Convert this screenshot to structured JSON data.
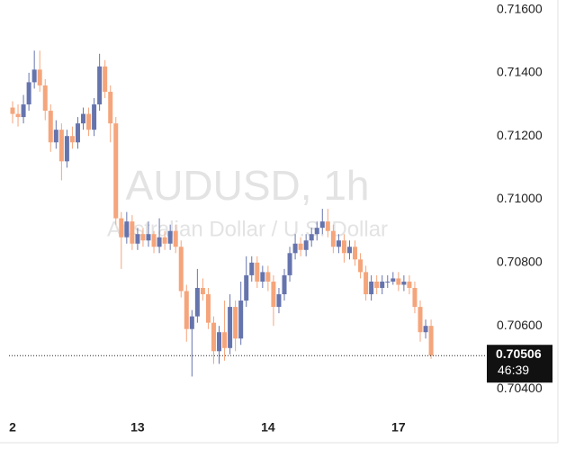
{
  "chart_data": {
    "type": "candlestick",
    "title": "AUDUSD, 1h",
    "subtitle": "Australian Dollar / U.S. Dollar",
    "categories": [
      "2",
      null,
      null,
      null,
      null,
      null,
      null,
      null,
      null,
      null,
      null,
      null,
      null,
      null,
      null,
      null,
      null,
      null,
      null,
      null,
      null,
      null,
      null,
      "13",
      null,
      null,
      null,
      null,
      null,
      null,
      null,
      null,
      null,
      null,
      null,
      null,
      null,
      null,
      null,
      null,
      null,
      null,
      null,
      null,
      null,
      null,
      null,
      "14",
      null,
      null,
      null,
      null,
      null,
      null,
      null,
      null,
      null,
      null,
      null,
      null,
      null,
      null,
      null,
      null,
      null,
      null,
      null,
      null,
      null,
      null,
      null,
      "17",
      null,
      null,
      null,
      null,
      null,
      null
    ],
    "open": [
      0.7129,
      0.7127,
      0.7126,
      0.713,
      0.7137,
      0.7141,
      0.7136,
      0.7128,
      0.7118,
      0.7122,
      0.7112,
      0.712,
      0.7118,
      0.7124,
      0.7127,
      0.7122,
      0.713,
      0.7142,
      0.7134,
      0.7124,
      0.7094,
      0.7088,
      0.7093,
      0.7086,
      0.7089,
      0.7087,
      0.7089,
      0.7085,
      0.7088,
      0.7086,
      0.709,
      0.7085,
      0.7071,
      0.7059,
      0.7063,
      0.7072,
      0.707,
      0.7061,
      0.7052,
      0.7058,
      0.7053,
      0.7066,
      0.7056,
      0.7068,
      0.7076,
      0.708,
      0.7074,
      0.7077,
      0.7074,
      0.7066,
      0.707,
      0.7076,
      0.7083,
      0.7086,
      0.7084,
      0.7087,
      0.7089,
      0.7091,
      0.7093,
      0.709,
      0.7085,
      0.7087,
      0.7083,
      0.7085,
      0.7081,
      0.7077,
      0.707,
      0.7074,
      0.7072,
      0.7074,
      0.7074,
      0.7075,
      0.7073,
      0.7074,
      0.7072,
      0.7066,
      0.7058,
      0.706
    ],
    "high": [
      0.7131,
      0.713,
      0.7133,
      0.714,
      0.7147,
      0.7147,
      0.7138,
      0.713,
      0.7125,
      0.7124,
      0.7122,
      0.7123,
      0.7126,
      0.7129,
      0.7129,
      0.7132,
      0.7146,
      0.7144,
      0.7136,
      0.7126,
      0.7096,
      0.7096,
      0.7095,
      0.7091,
      0.7091,
      0.7093,
      0.709,
      0.7094,
      0.709,
      0.7092,
      0.7092,
      0.7087,
      0.7073,
      0.7065,
      0.7078,
      0.7075,
      0.7072,
      0.7063,
      0.706,
      0.7068,
      0.707,
      0.7068,
      0.7074,
      0.7082,
      0.7082,
      0.7082,
      0.7079,
      0.7079,
      0.7076,
      0.7072,
      0.7078,
      0.7085,
      0.7089,
      0.7088,
      0.7089,
      0.7091,
      0.7093,
      0.7097,
      0.7097,
      0.7092,
      0.7089,
      0.7089,
      0.7087,
      0.7087,
      0.7083,
      0.7079,
      0.7076,
      0.7076,
      0.7076,
      0.7076,
      0.7077,
      0.7077,
      0.7076,
      0.7076,
      0.7074,
      0.7068,
      0.7062,
      0.7062
    ],
    "low": [
      0.7124,
      0.7123,
      0.7124,
      0.7128,
      0.7135,
      0.7134,
      0.7125,
      0.7115,
      0.7116,
      0.7106,
      0.711,
      0.7116,
      0.7116,
      0.7122,
      0.712,
      0.712,
      0.7128,
      0.7132,
      0.7118,
      0.7092,
      0.7078,
      0.7086,
      0.7084,
      0.7084,
      0.7085,
      0.7085,
      0.7083,
      0.7083,
      0.7084,
      0.7084,
      0.7083,
      0.7069,
      0.7055,
      0.7044,
      0.7061,
      0.7068,
      0.7059,
      0.7048,
      0.7048,
      0.7049,
      0.7051,
      0.7052,
      0.7054,
      0.7066,
      0.7074,
      0.7072,
      0.7072,
      0.7071,
      0.706,
      0.7064,
      0.7068,
      0.7074,
      0.7081,
      0.7082,
      0.7082,
      0.7085,
      0.7087,
      0.7089,
      0.7088,
      0.7083,
      0.7083,
      0.708,
      0.7081,
      0.7079,
      0.7075,
      0.7068,
      0.7068,
      0.707,
      0.707,
      0.7072,
      0.7073,
      0.7071,
      0.7071,
      0.707,
      0.7064,
      0.7055,
      0.7056,
      0.70496
    ],
    "close": [
      0.7127,
      0.7126,
      0.713,
      0.7137,
      0.7141,
      0.7136,
      0.7128,
      0.7118,
      0.7122,
      0.7112,
      0.712,
      0.7118,
      0.7124,
      0.7127,
      0.7122,
      0.713,
      0.7142,
      0.7134,
      0.7124,
      0.7094,
      0.7088,
      0.7093,
      0.7086,
      0.7089,
      0.7087,
      0.7089,
      0.7085,
      0.7088,
      0.7086,
      0.709,
      0.7085,
      0.7071,
      0.7059,
      0.7063,
      0.7072,
      0.707,
      0.7061,
      0.7052,
      0.7058,
      0.7053,
      0.7066,
      0.7056,
      0.7068,
      0.7076,
      0.708,
      0.7074,
      0.7077,
      0.7074,
      0.7066,
      0.707,
      0.7076,
      0.7083,
      0.7086,
      0.7084,
      0.7087,
      0.7089,
      0.7091,
      0.7093,
      0.709,
      0.7085,
      0.7087,
      0.7083,
      0.7085,
      0.7081,
      0.7077,
      0.707,
      0.7074,
      0.7072,
      0.7074,
      0.7074,
      0.7075,
      0.7073,
      0.7074,
      0.7072,
      0.7066,
      0.7058,
      0.706,
      0.70506
    ],
    "up_color": "#6674ad",
    "down_color": "#f5a57b",
    "ylim": [
      0.7034,
      0.7163
    ],
    "yticks": [
      {
        "value": 0.704,
        "label": "0.70400"
      },
      {
        "value": 0.706,
        "label": "0.70600"
      },
      {
        "value": 0.708,
        "label": "0.70800"
      },
      {
        "value": 0.71,
        "label": "0.71000"
      },
      {
        "value": 0.712,
        "label": "0.71200"
      },
      {
        "value": 0.714,
        "label": "0.71400"
      },
      {
        "value": 0.716,
        "label": "0.71600"
      }
    ],
    "last_price": 0.70506,
    "countdown": "46:39"
  }
}
